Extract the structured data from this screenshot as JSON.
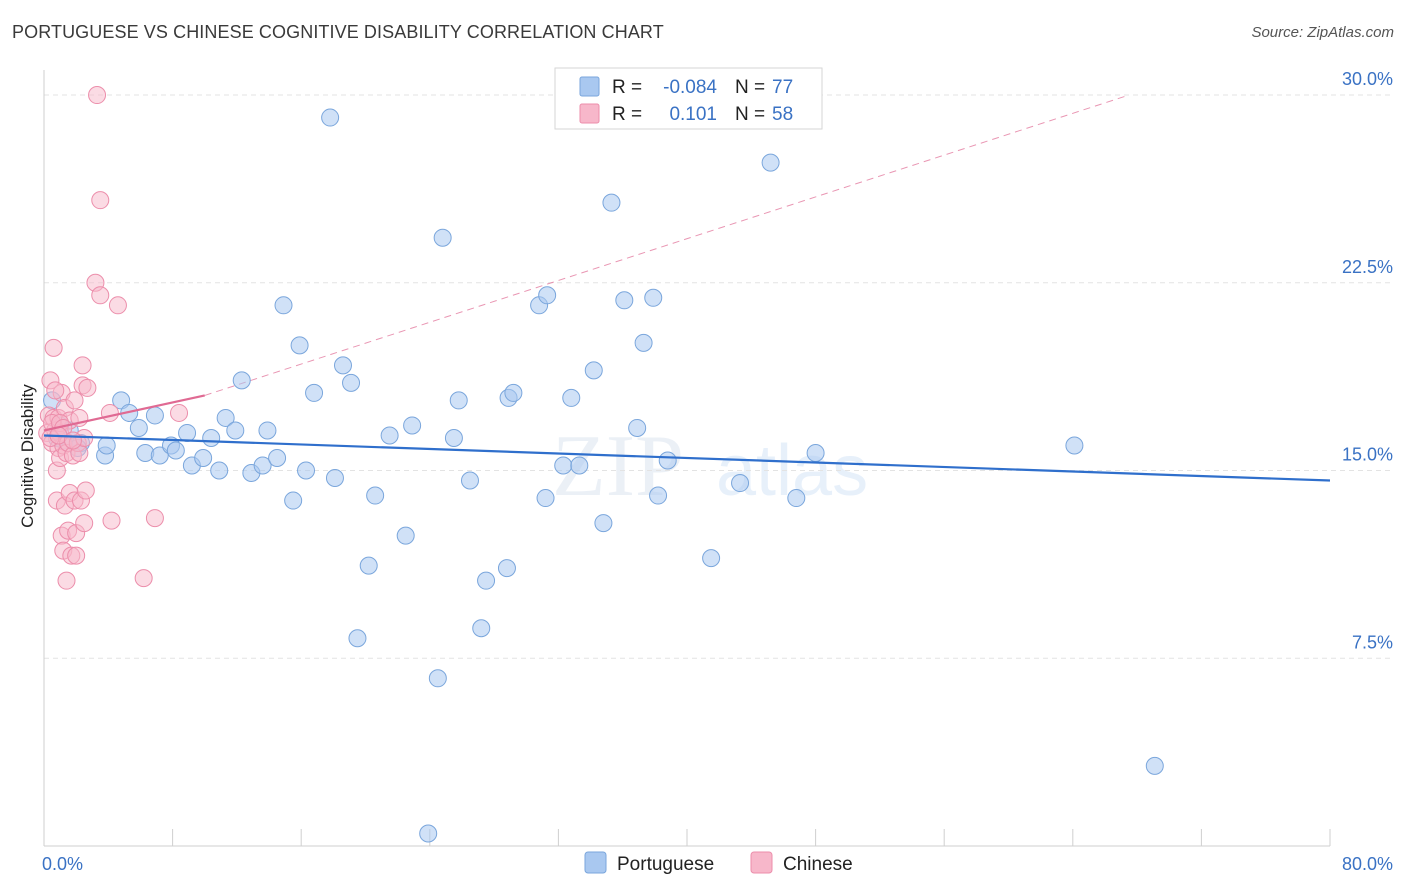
{
  "title": "PORTUGUESE VS CHINESE COGNITIVE DISABILITY CORRELATION CHART",
  "source": "Source: ZipAtlas.com",
  "watermark": {
    "zip": "ZIP",
    "atlas": "atlas"
  },
  "colors": {
    "portuguese": "#a9c8f0",
    "portuguese_stroke": "#7aa6dc",
    "portuguese_line": "#2f6fcc",
    "chinese": "#f7b7ca",
    "chinese_stroke": "#ec8eab",
    "chinese_line": "#e06a93",
    "tick": "#3a72c4",
    "grid": "#e3e3e3"
  },
  "legend": {
    "rows": [
      {
        "r_label": "R =",
        "r_value": "-0.084",
        "n_label": "N =",
        "n_value": "77"
      },
      {
        "r_label": "R =",
        "r_value": "0.101",
        "n_label": "N =",
        "n_value": "58"
      }
    ]
  },
  "bottom_legend": [
    "Portuguese",
    "Chinese"
  ],
  "chart_data": {
    "type": "scatter",
    "title": "PORTUGUESE VS CHINESE COGNITIVE DISABILITY CORRELATION CHART",
    "ylabel": "Cognitive Disability",
    "xlabel": "",
    "xlim": [
      0,
      80
    ],
    "ylim": [
      0,
      31
    ],
    "x_tick_labels": [
      "0.0%",
      "80.0%"
    ],
    "y_ticks": [
      7.5,
      15.0,
      22.5,
      30.0
    ],
    "y_tick_labels": [
      "7.5%",
      "15.0%",
      "22.5%",
      "30.0%"
    ],
    "grid": "horizontal dashed",
    "legend_position": "top-center",
    "series": [
      {
        "name": "Portuguese",
        "points": [
          [
            0.5,
            17.8
          ],
          [
            1.2,
            16.2
          ],
          [
            1.6,
            16.6
          ],
          [
            2.3,
            16.1
          ],
          [
            3.8,
            15.6
          ],
          [
            3.9,
            16.0
          ],
          [
            4.8,
            17.8
          ],
          [
            5.3,
            17.3
          ],
          [
            5.9,
            16.7
          ],
          [
            6.3,
            15.7
          ],
          [
            6.9,
            17.2
          ],
          [
            7.2,
            15.6
          ],
          [
            7.9,
            16.0
          ],
          [
            8.2,
            15.8
          ],
          [
            8.9,
            16.5
          ],
          [
            9.2,
            15.2
          ],
          [
            9.9,
            15.5
          ],
          [
            10.4,
            16.3
          ],
          [
            10.9,
            15.0
          ],
          [
            11.3,
            17.1
          ],
          [
            11.9,
            16.6
          ],
          [
            12.3,
            18.6
          ],
          [
            12.9,
            14.9
          ],
          [
            13.6,
            15.2
          ],
          [
            13.9,
            16.6
          ],
          [
            14.5,
            15.5
          ],
          [
            14.9,
            21.6
          ],
          [
            15.5,
            13.8
          ],
          [
            15.9,
            20.0
          ],
          [
            16.3,
            15.0
          ],
          [
            16.8,
            18.1
          ],
          [
            17.8,
            29.1
          ],
          [
            18.1,
            14.7
          ],
          [
            18.6,
            19.2
          ],
          [
            19.1,
            18.5
          ],
          [
            19.5,
            8.3
          ],
          [
            20.2,
            11.2
          ],
          [
            20.6,
            14.0
          ],
          [
            21.5,
            16.4
          ],
          [
            22.5,
            12.4
          ],
          [
            22.9,
            16.8
          ],
          [
            23.9,
            0.5
          ],
          [
            24.5,
            6.7
          ],
          [
            24.8,
            24.3
          ],
          [
            25.5,
            16.3
          ],
          [
            25.8,
            17.8
          ],
          [
            26.5,
            14.6
          ],
          [
            27.5,
            10.6
          ],
          [
            27.2,
            8.7
          ],
          [
            28.8,
            11.1
          ],
          [
            28.9,
            17.9
          ],
          [
            29.2,
            18.1
          ],
          [
            30.8,
            21.6
          ],
          [
            31.3,
            22.0
          ],
          [
            31.2,
            13.9
          ],
          [
            32.3,
            15.2
          ],
          [
            32.8,
            17.9
          ],
          [
            33.3,
            15.2
          ],
          [
            34.2,
            19.0
          ],
          [
            34.8,
            12.9
          ],
          [
            35.3,
            25.7
          ],
          [
            36.1,
            21.8
          ],
          [
            36.9,
            16.7
          ],
          [
            37.3,
            20.1
          ],
          [
            37.9,
            21.9
          ],
          [
            38.2,
            14.0
          ],
          [
            38.8,
            15.4
          ],
          [
            41.5,
            11.5
          ],
          [
            43.3,
            14.5
          ],
          [
            45.2,
            27.3
          ],
          [
            46.8,
            13.9
          ],
          [
            48.0,
            15.7
          ],
          [
            64.1,
            16.0
          ],
          [
            69.1,
            3.2
          ],
          [
            1.0,
            16.8
          ],
          [
            2.1,
            15.9
          ],
          [
            0.8,
            16.3
          ]
        ],
        "trend": [
          [
            0.0,
            16.4
          ],
          [
            80.0,
            14.6
          ]
        ]
      },
      {
        "name": "Chinese",
        "points": [
          [
            0.2,
            16.5
          ],
          [
            0.3,
            17.2
          ],
          [
            0.4,
            18.6
          ],
          [
            0.5,
            16.1
          ],
          [
            0.6,
            19.9
          ],
          [
            0.6,
            17.1
          ],
          [
            0.7,
            16.6
          ],
          [
            0.8,
            15.0
          ],
          [
            0.8,
            13.8
          ],
          [
            0.9,
            15.9
          ],
          [
            0.9,
            17.1
          ],
          [
            1.0,
            16.5
          ],
          [
            1.0,
            15.5
          ],
          [
            1.1,
            12.4
          ],
          [
            1.1,
            18.1
          ],
          [
            1.2,
            16.0
          ],
          [
            1.2,
            11.8
          ],
          [
            1.3,
            13.6
          ],
          [
            1.3,
            17.5
          ],
          [
            1.4,
            15.7
          ],
          [
            1.4,
            10.6
          ],
          [
            1.5,
            16.1
          ],
          [
            1.5,
            12.6
          ],
          [
            1.6,
            17.0
          ],
          [
            1.6,
            14.1
          ],
          [
            1.7,
            11.6
          ],
          [
            1.8,
            15.6
          ],
          [
            1.9,
            13.8
          ],
          [
            1.9,
            17.8
          ],
          [
            2.0,
            12.5
          ],
          [
            2.0,
            11.6
          ],
          [
            2.1,
            16.1
          ],
          [
            2.2,
            15.7
          ],
          [
            2.2,
            17.1
          ],
          [
            2.3,
            13.8
          ],
          [
            2.4,
            19.2
          ],
          [
            2.4,
            18.4
          ],
          [
            2.5,
            12.9
          ],
          [
            2.5,
            16.3
          ],
          [
            2.6,
            14.2
          ],
          [
            2.7,
            18.3
          ],
          [
            3.2,
            22.5
          ],
          [
            3.3,
            30.0
          ],
          [
            3.5,
            25.8
          ],
          [
            3.5,
            22.0
          ],
          [
            4.1,
            17.3
          ],
          [
            4.2,
            13.0
          ],
          [
            4.6,
            21.6
          ],
          [
            6.2,
            10.7
          ],
          [
            6.9,
            13.1
          ],
          [
            0.5,
            16.9
          ],
          [
            0.7,
            18.2
          ],
          [
            1.0,
            16.9
          ],
          [
            1.2,
            16.7
          ],
          [
            8.4,
            17.3
          ],
          [
            0.4,
            16.3
          ],
          [
            0.9,
            16.4
          ],
          [
            1.8,
            16.2
          ]
        ],
        "trend": [
          [
            0.0,
            16.6
          ],
          [
            10.0,
            18.0
          ]
        ],
        "trend_extension": [
          [
            10.0,
            18.0
          ],
          [
            67.5,
            30.0
          ]
        ]
      }
    ]
  }
}
